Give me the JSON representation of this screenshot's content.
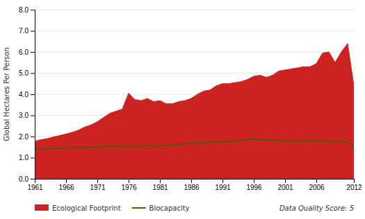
{
  "chart_data": {
    "type": "area",
    "x": [
      1961,
      1962,
      1963,
      1964,
      1965,
      1966,
      1967,
      1968,
      1969,
      1970,
      1971,
      1972,
      1973,
      1974,
      1975,
      1976,
      1977,
      1978,
      1979,
      1980,
      1981,
      1982,
      1983,
      1984,
      1985,
      1986,
      1987,
      1988,
      1989,
      1990,
      1991,
      1992,
      1993,
      1994,
      1995,
      1996,
      1997,
      1998,
      1999,
      2000,
      2001,
      2002,
      2003,
      2004,
      2005,
      2006,
      2007,
      2008,
      2009,
      2010,
      2011,
      2012
    ],
    "series": [
      {
        "name": "Ecological Footprint",
        "type": "area",
        "color": "#cc2222",
        "values": [
          1.78,
          1.85,
          1.9,
          1.98,
          2.05,
          2.12,
          2.2,
          2.3,
          2.45,
          2.55,
          2.7,
          2.9,
          3.1,
          3.2,
          3.3,
          4.05,
          3.75,
          3.7,
          3.8,
          3.65,
          3.7,
          3.55,
          3.55,
          3.65,
          3.7,
          3.8,
          4.0,
          4.15,
          4.2,
          4.4,
          4.5,
          4.5,
          4.55,
          4.6,
          4.7,
          4.85,
          4.9,
          4.8,
          4.9,
          5.1,
          5.15,
          5.2,
          5.25,
          5.3,
          5.3,
          5.45,
          5.95,
          6.0,
          5.5,
          6.0,
          6.4,
          4.4
        ]
      },
      {
        "name": "Biocapacity",
        "type": "line",
        "color": "#4a5a00",
        "values": [
          1.4,
          1.42,
          1.43,
          1.44,
          1.45,
          1.46,
          1.46,
          1.47,
          1.48,
          1.5,
          1.52,
          1.52,
          1.55,
          1.52,
          1.52,
          1.55,
          1.53,
          1.55,
          1.58,
          1.56,
          1.55,
          1.57,
          1.6,
          1.62,
          1.65,
          1.68,
          1.7,
          1.72,
          1.73,
          1.75,
          1.76,
          1.77,
          1.8,
          1.82,
          1.85,
          1.88,
          1.85,
          1.82,
          1.85,
          1.82,
          1.8,
          1.78,
          1.82,
          1.8,
          1.8,
          1.82,
          1.8,
          1.75,
          1.78,
          1.78,
          1.72,
          1.55
        ]
      }
    ],
    "ylabel": "Global Hectares Per Person",
    "xlim": [
      1961,
      2012
    ],
    "xticks": [
      1961,
      1966,
      1971,
      1976,
      1981,
      1986,
      1991,
      1996,
      2001,
      2006,
      2012
    ],
    "ylim": [
      0.0,
      8.0
    ],
    "yticks": [
      {
        "value": 0,
        "label": "0.0"
      },
      {
        "value": 1,
        "label": "1.0"
      },
      {
        "value": 2,
        "label": "2.0"
      },
      {
        "value": 3,
        "label": "3.0"
      },
      {
        "value": 4,
        "label": "4.0"
      },
      {
        "value": 5,
        "label": "5.0"
      },
      {
        "value": 6,
        "label": "6.0"
      },
      {
        "value": 7,
        "label": "7.0"
      },
      {
        "value": 8,
        "label": "8.0"
      }
    ],
    "grid": true,
    "legend": "bottom",
    "annotations": [
      "Data Quality Score: 5"
    ]
  }
}
